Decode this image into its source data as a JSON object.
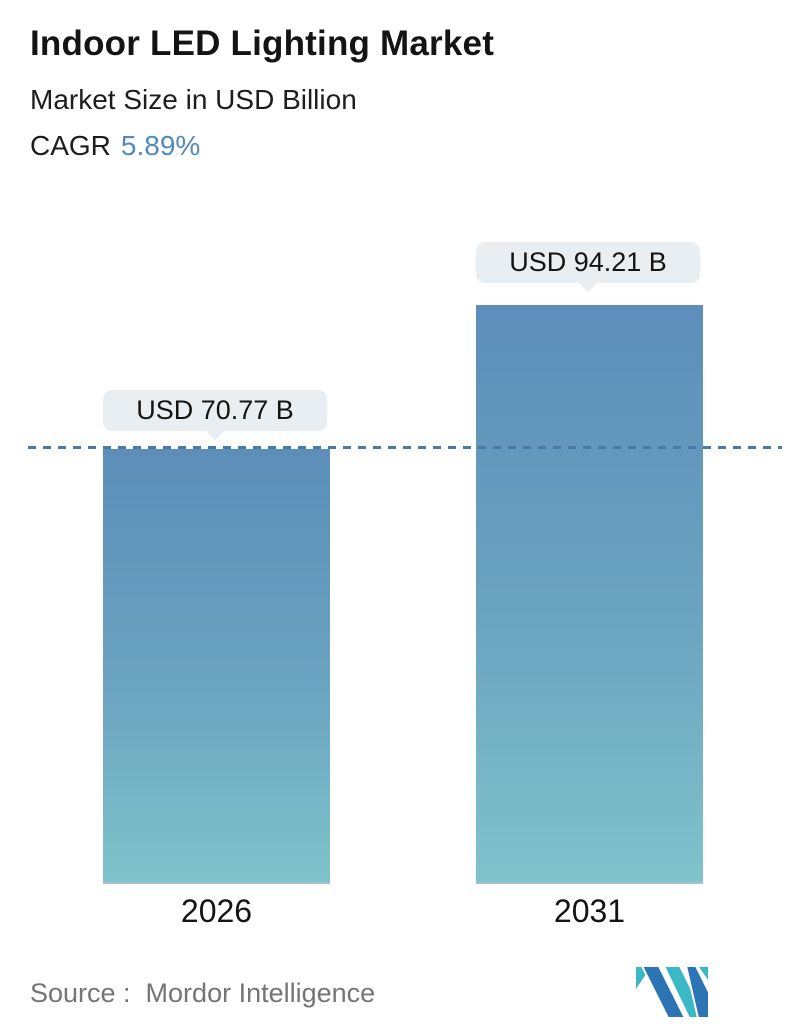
{
  "header": {
    "title": "Indoor LED Lighting Market",
    "subtitle": "Market Size in USD Billion",
    "cagr_label": "CAGR",
    "cagr_value": "5.89%"
  },
  "chart_data": {
    "type": "bar",
    "title": "Indoor LED Lighting Market",
    "subtitle": "Market Size in USD Billion",
    "cagr": "5.89%",
    "unit": "USD Billion",
    "categories": [
      "2026",
      "2031"
    ],
    "values": [
      70.77,
      94.21
    ],
    "value_labels": [
      "USD 70.77 B",
      "USD 94.21 B"
    ],
    "reference_line_value": 70.77,
    "reference_line_style": "dashed",
    "ylim": [
      0,
      100
    ],
    "grid": false,
    "legend": false,
    "xlabel": "",
    "ylabel": ""
  },
  "footer": {
    "source": "Source :  Mordor Intelligence",
    "logo_name": "Mordor Intelligence"
  },
  "colors": {
    "accent_blue": "#5389BB",
    "bar_gradient_top": "#5C8EB9",
    "bar_gradient_bottom": "#7FC3CB",
    "dashed_line": "#4A79A8",
    "bubble_bg": "#E8EEF1",
    "title_text": "#141414",
    "source_text": "#757575",
    "logo_teal": "#3BB8C6",
    "logo_blue": "#2D74B5"
  }
}
